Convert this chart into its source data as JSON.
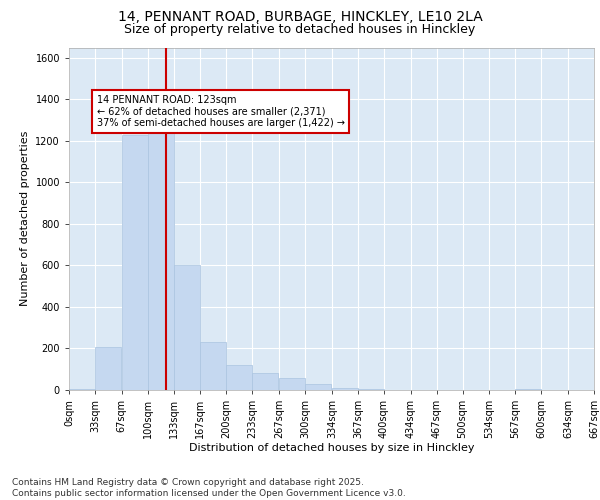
{
  "title1": "14, PENNANT ROAD, BURBAGE, HINCKLEY, LE10 2LA",
  "title2": "Size of property relative to detached houses in Hinckley",
  "xlabel": "Distribution of detached houses by size in Hinckley",
  "ylabel": "Number of detached properties",
  "bin_labels": [
    "0sqm",
    "33sqm",
    "67sqm",
    "100sqm",
    "133sqm",
    "167sqm",
    "200sqm",
    "233sqm",
    "267sqm",
    "300sqm",
    "334sqm",
    "367sqm",
    "400sqm",
    "434sqm",
    "467sqm",
    "500sqm",
    "534sqm",
    "567sqm",
    "600sqm",
    "634sqm",
    "667sqm"
  ],
  "bin_edges": [
    0,
    33,
    67,
    100,
    133,
    167,
    200,
    233,
    267,
    300,
    334,
    367,
    400,
    434,
    467,
    500,
    534,
    567,
    600,
    634,
    667
  ],
  "bar_heights": [
    5,
    205,
    1230,
    1300,
    600,
    230,
    120,
    80,
    60,
    30,
    10,
    5,
    0,
    0,
    0,
    0,
    0,
    5,
    0,
    0,
    0
  ],
  "bar_color": "#c5d8f0",
  "bar_edge_color": "#aac4e0",
  "vline_x": 123,
  "vline_color": "#cc0000",
  "annotation_text": "14 PENNANT ROAD: 123sqm\n← 62% of detached houses are smaller (2,371)\n37% of semi-detached houses are larger (1,422) →",
  "annotation_box_color": "#ffffff",
  "annotation_box_edge": "#cc0000",
  "ylim": [
    0,
    1650
  ],
  "yticks": [
    0,
    200,
    400,
    600,
    800,
    1000,
    1200,
    1400,
    1600
  ],
  "background_color": "#ffffff",
  "plot_bg_color": "#dce9f5",
  "grid_color": "#ffffff",
  "footer1": "Contains HM Land Registry data © Crown copyright and database right 2025.",
  "footer2": "Contains public sector information licensed under the Open Government Licence v3.0.",
  "title_fontsize": 10,
  "subtitle_fontsize": 9,
  "label_fontsize": 8,
  "tick_fontsize": 7,
  "footer_fontsize": 6.5,
  "ann_fontsize": 7
}
